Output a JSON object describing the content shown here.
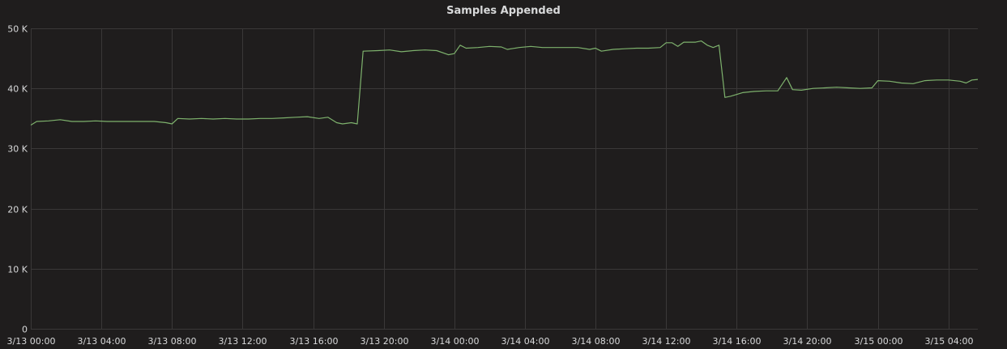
{
  "panel": {
    "title": "Samples Appended"
  },
  "colors": {
    "background": "#1f1d1d",
    "grid": "#3a3838",
    "text": "#d8d9da",
    "series": "#7eb26d"
  },
  "chart_data": {
    "type": "line",
    "title": "Samples Appended",
    "xlabel": "",
    "ylabel": "",
    "grid": true,
    "ylim": [
      0,
      50000
    ],
    "xlim": [
      "3/13 00:00",
      "3/15 05:40"
    ],
    "y_ticks": [
      {
        "value": 0,
        "label": "0"
      },
      {
        "value": 10000,
        "label": "10 K"
      },
      {
        "value": 20000,
        "label": "20 K"
      },
      {
        "value": 30000,
        "label": "30 K"
      },
      {
        "value": 40000,
        "label": "40 K"
      },
      {
        "value": 50000,
        "label": "50 K"
      }
    ],
    "x_ticks": [
      {
        "value": "3/13 00:00",
        "label": "3/13 00:00"
      },
      {
        "value": "3/13 04:00",
        "label": "3/13 04:00"
      },
      {
        "value": "3/13 08:00",
        "label": "3/13 08:00"
      },
      {
        "value": "3/13 12:00",
        "label": "3/13 12:00"
      },
      {
        "value": "3/13 16:00",
        "label": "3/13 16:00"
      },
      {
        "value": "3/13 20:00",
        "label": "3/13 20:00"
      },
      {
        "value": "3/14 00:00",
        "label": "3/14 00:00"
      },
      {
        "value": "3/14 04:00",
        "label": "3/14 04:00"
      },
      {
        "value": "3/14 08:00",
        "label": "3/14 08:00"
      },
      {
        "value": "3/14 12:00",
        "label": "3/14 12:00"
      },
      {
        "value": "3/14 16:00",
        "label": "3/14 16:00"
      },
      {
        "value": "3/14 20:00",
        "label": "3/14 20:00"
      },
      {
        "value": "3/15 00:00",
        "label": "3/15 00:00"
      },
      {
        "value": "3/15 04:00",
        "label": "3/15 04:00"
      }
    ],
    "series": [
      {
        "color": "#7eb26d",
        "points": [
          [
            "3/13 00:00",
            33900
          ],
          [
            "3/13 00:20",
            34500
          ],
          [
            "3/13 01:00",
            34600
          ],
          [
            "3/13 01:40",
            34800
          ],
          [
            "3/13 02:20",
            34500
          ],
          [
            "3/13 03:00",
            34500
          ],
          [
            "3/13 03:40",
            34600
          ],
          [
            "3/13 04:20",
            34500
          ],
          [
            "3/13 05:00",
            34500
          ],
          [
            "3/13 05:40",
            34500
          ],
          [
            "3/13 06:20",
            34500
          ],
          [
            "3/13 07:00",
            34500
          ],
          [
            "3/13 07:40",
            34300
          ],
          [
            "3/13 08:00",
            34100
          ],
          [
            "3/13 08:20",
            35000
          ],
          [
            "3/13 09:00",
            34900
          ],
          [
            "3/13 09:40",
            35000
          ],
          [
            "3/13 10:20",
            34900
          ],
          [
            "3/13 11:00",
            35000
          ],
          [
            "3/13 11:40",
            34900
          ],
          [
            "3/13 12:20",
            34900
          ],
          [
            "3/13 13:00",
            35000
          ],
          [
            "3/13 13:40",
            35000
          ],
          [
            "3/13 14:20",
            35100
          ],
          [
            "3/13 15:00",
            35200
          ],
          [
            "3/13 15:40",
            35300
          ],
          [
            "3/13 16:20",
            35000
          ],
          [
            "3/13 16:50",
            35200
          ],
          [
            "3/13 17:20",
            34300
          ],
          [
            "3/13 17:40",
            34100
          ],
          [
            "3/13 18:10",
            34300
          ],
          [
            "3/13 18:30",
            34100
          ],
          [
            "3/13 18:50",
            46200
          ],
          [
            "3/13 19:40",
            46300
          ],
          [
            "3/13 20:20",
            46400
          ],
          [
            "3/13 21:00",
            46100
          ],
          [
            "3/13 21:40",
            46300
          ],
          [
            "3/13 22:20",
            46400
          ],
          [
            "3/13 23:00",
            46300
          ],
          [
            "3/13 23:40",
            45600
          ],
          [
            "3/14 00:00",
            45800
          ],
          [
            "3/14 00:20",
            47200
          ],
          [
            "3/14 00:40",
            46700
          ],
          [
            "3/14 01:20",
            46800
          ],
          [
            "3/14 02:00",
            47000
          ],
          [
            "3/14 02:40",
            46900
          ],
          [
            "3/14 03:00",
            46500
          ],
          [
            "3/14 03:40",
            46800
          ],
          [
            "3/14 04:20",
            47000
          ],
          [
            "3/14 05:00",
            46800
          ],
          [
            "3/14 06:00",
            46800
          ],
          [
            "3/14 07:00",
            46800
          ],
          [
            "3/14 07:40",
            46500
          ],
          [
            "3/14 08:00",
            46700
          ],
          [
            "3/14 08:20",
            46200
          ],
          [
            "3/14 09:00",
            46500
          ],
          [
            "3/14 09:40",
            46600
          ],
          [
            "3/14 10:20",
            46700
          ],
          [
            "3/14 11:00",
            46700
          ],
          [
            "3/14 11:40",
            46800
          ],
          [
            "3/14 12:00",
            47600
          ],
          [
            "3/14 12:20",
            47600
          ],
          [
            "3/14 12:40",
            47000
          ],
          [
            "3/14 13:00",
            47700
          ],
          [
            "3/14 13:20",
            47700
          ],
          [
            "3/14 13:40",
            47700
          ],
          [
            "3/14 14:00",
            47900
          ],
          [
            "3/14 14:20",
            47200
          ],
          [
            "3/14 14:40",
            46800
          ],
          [
            "3/14 15:00",
            47200
          ],
          [
            "3/14 15:20",
            38500
          ],
          [
            "3/14 15:40",
            38700
          ],
          [
            "3/14 16:20",
            39300
          ],
          [
            "3/14 17:00",
            39500
          ],
          [
            "3/14 17:40",
            39600
          ],
          [
            "3/14 18:20",
            39600
          ],
          [
            "3/14 18:50",
            41800
          ],
          [
            "3/14 19:10",
            39800
          ],
          [
            "3/14 19:40",
            39700
          ],
          [
            "3/14 20:20",
            40000
          ],
          [
            "3/14 21:00",
            40100
          ],
          [
            "3/14 21:40",
            40200
          ],
          [
            "3/14 22:20",
            40100
          ],
          [
            "3/14 23:00",
            40000
          ],
          [
            "3/14 23:40",
            40100
          ],
          [
            "3/15 00:00",
            41300
          ],
          [
            "3/15 00:40",
            41200
          ],
          [
            "3/15 01:20",
            40900
          ],
          [
            "3/15 02:00",
            40800
          ],
          [
            "3/15 02:40",
            41300
          ],
          [
            "3/15 03:20",
            41400
          ],
          [
            "3/15 04:00",
            41400
          ],
          [
            "3/15 04:40",
            41200
          ],
          [
            "3/15 05:00",
            40900
          ],
          [
            "3/15 05:20",
            41400
          ],
          [
            "3/15 05:40",
            41500
          ]
        ]
      }
    ]
  }
}
